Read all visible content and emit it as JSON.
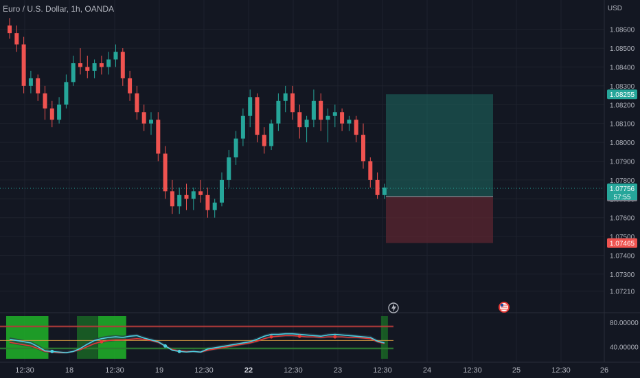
{
  "header": {
    "title": "Euro / U.S. Dollar, 1h, OANDA"
  },
  "currency": "USD",
  "colors": {
    "bg": "#131722",
    "up": "#26a69a",
    "down": "#ef5350",
    "grid": "#1e222d",
    "text": "#b2b5be",
    "target": "#1e6b63",
    "stop": "#5b2530",
    "indicator_cyan": "#4dd0e1",
    "indicator_red": "#e53935",
    "zone_green": "#1faa28"
  },
  "price_axis": {
    "ticks": [
      "1.08600",
      "1.08500",
      "1.08400",
      "1.08300",
      "1.08200",
      "1.08100",
      "1.08000",
      "1.07900",
      "1.07800",
      "1.07700",
      "1.07600",
      "1.07500",
      "1.07400",
      "1.07300",
      "1.07210"
    ],
    "ymin": 1.0715,
    "ymax": 1.0869
  },
  "price_labels": {
    "target": "1.08255",
    "current": "1.07756",
    "countdown": "57:55",
    "entry": "1.07712",
    "stop": "1.07465"
  },
  "indicator_axis": {
    "ticks": [
      "80.00000",
      "40.00000"
    ]
  },
  "time_axis": {
    "ticks": [
      "12:30",
      "18",
      "12:30",
      "19",
      "12:30",
      "22",
      "12:30",
      "23",
      "12:30",
      "24",
      "12:30",
      "25",
      "12:30",
      "26"
    ]
  },
  "icons": {
    "flash": "lightning-icon",
    "event": "us-flag-icon"
  },
  "chart_data": {
    "type": "candlestick",
    "title": "Euro / U.S. Dollar, 1h, OANDA",
    "ylim": [
      1.0715,
      1.0869
    ],
    "ohlc": [
      [
        1.0862,
        1.0866,
        1.0855,
        1.0858
      ],
      [
        1.0858,
        1.0862,
        1.0848,
        1.0852
      ],
      [
        1.0852,
        1.0856,
        1.0826,
        1.083
      ],
      [
        1.083,
        1.0838,
        1.0826,
        1.0834
      ],
      [
        1.0834,
        1.0836,
        1.0822,
        1.0826
      ],
      [
        1.0826,
        1.083,
        1.0812,
        1.0818
      ],
      [
        1.0818,
        1.0822,
        1.0808,
        1.0812
      ],
      [
        1.0812,
        1.0824,
        1.081,
        1.082
      ],
      [
        1.082,
        1.0836,
        1.0818,
        1.0832
      ],
      [
        1.0832,
        1.0846,
        1.083,
        1.0842
      ],
      [
        1.0842,
        1.085,
        1.0836,
        1.084
      ],
      [
        1.084,
        1.0846,
        1.0834,
        1.0838
      ],
      [
        1.0838,
        1.0844,
        1.0834,
        1.0842
      ],
      [
        1.0842,
        1.0846,
        1.0836,
        1.084
      ],
      [
        1.084,
        1.0848,
        1.0836,
        1.0844
      ],
      [
        1.0844,
        1.0852,
        1.084,
        1.0848
      ],
      [
        1.0848,
        1.085,
        1.083,
        1.0834
      ],
      [
        1.0834,
        1.0838,
        1.0822,
        1.0826
      ],
      [
        1.0826,
        1.083,
        1.0812,
        1.0816
      ],
      [
        1.0816,
        1.082,
        1.0806,
        1.081
      ],
      [
        1.081,
        1.0816,
        1.0804,
        1.0812
      ],
      [
        1.0812,
        1.0816,
        1.079,
        1.0794
      ],
      [
        1.0794,
        1.0798,
        1.077,
        1.0774
      ],
      [
        1.0774,
        1.078,
        1.0762,
        1.0766
      ],
      [
        1.0766,
        1.0776,
        1.0762,
        1.0772
      ],
      [
        1.0772,
        1.0778,
        1.0764,
        1.077
      ],
      [
        1.077,
        1.0776,
        1.0764,
        1.0774
      ],
      [
        1.0774,
        1.078,
        1.0768,
        1.0772
      ],
      [
        1.0772,
        1.0776,
        1.076,
        1.0764
      ],
      [
        1.0764,
        1.077,
        1.076,
        1.0768
      ],
      [
        1.0768,
        1.0784,
        1.0766,
        1.078
      ],
      [
        1.078,
        1.0796,
        1.0776,
        1.0792
      ],
      [
        1.0792,
        1.0806,
        1.0788,
        1.0802
      ],
      [
        1.0802,
        1.0818,
        1.0798,
        1.0814
      ],
      [
        1.0814,
        1.0828,
        1.0808,
        1.0824
      ],
      [
        1.0824,
        1.0826,
        1.08,
        1.0804
      ],
      [
        1.0804,
        1.0808,
        1.0794,
        1.0798
      ],
      [
        1.0798,
        1.0812,
        1.0796,
        1.081
      ],
      [
        1.081,
        1.0826,
        1.0806,
        1.0822
      ],
      [
        1.0822,
        1.083,
        1.0816,
        1.0826
      ],
      [
        1.0826,
        1.083,
        1.0812,
        1.0816
      ],
      [
        1.0816,
        1.082,
        1.0802,
        1.0808
      ],
      [
        1.0808,
        1.0814,
        1.08,
        1.0812
      ],
      [
        1.0812,
        1.0828,
        1.0808,
        1.0822
      ],
      [
        1.0822,
        1.0826,
        1.0806,
        1.0812
      ],
      [
        1.0812,
        1.0818,
        1.08,
        1.0814
      ],
      [
        1.0814,
        1.082,
        1.0808,
        1.0816
      ],
      [
        1.0816,
        1.0818,
        1.0806,
        1.081
      ],
      [
        1.081,
        1.0814,
        1.0806,
        1.0812
      ],
      [
        1.0812,
        1.0814,
        1.08,
        1.0804
      ],
      [
        1.0804,
        1.081,
        1.0786,
        1.079
      ],
      [
        1.079,
        1.0792,
        1.0776,
        1.078
      ],
      [
        1.078,
        1.0784,
        1.077,
        1.0772
      ],
      [
        1.0772,
        1.0778,
        1.077,
        1.0776
      ]
    ]
  },
  "indicator_data": {
    "cyan": [
      52,
      50,
      48,
      46,
      40,
      33,
      32,
      31,
      30,
      32,
      37,
      44,
      50,
      53,
      55,
      56,
      55,
      57,
      58,
      54,
      51,
      48,
      41,
      34,
      32,
      31,
      32,
      31,
      36,
      38,
      40,
      42,
      44,
      46,
      48,
      52,
      57,
      60,
      60,
      61,
      61,
      60,
      59,
      58,
      57,
      59,
      60,
      59,
      58,
      57,
      56,
      55,
      49,
      46
    ],
    "red": [
      47,
      45,
      43,
      41,
      37,
      32,
      31,
      30,
      30,
      32,
      35,
      40,
      45,
      48,
      50,
      51,
      51,
      52,
      53,
      52,
      50,
      47,
      41,
      35,
      33,
      32,
      32,
      31,
      34,
      36,
      38,
      40,
      42,
      44,
      46,
      49,
      53,
      56,
      57,
      58,
      58,
      57,
      56,
      56,
      55,
      56,
      56,
      56,
      55,
      55,
      54,
      53,
      48,
      45
    ],
    "levels": [
      73,
      50,
      37
    ],
    "zones": [
      [
        0,
        5
      ],
      [
        10,
        12
      ],
      [
        13,
        16
      ],
      [
        53,
        53
      ]
    ],
    "ymin": 20,
    "ymax": 90
  }
}
